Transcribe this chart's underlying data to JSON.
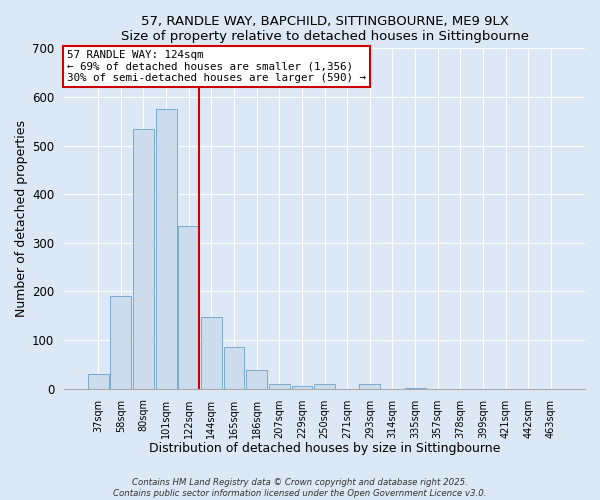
{
  "title": "57, RANDLE WAY, BAPCHILD, SITTINGBOURNE, ME9 9LX",
  "subtitle": "Size of property relative to detached houses in Sittingbourne",
  "xlabel": "Distribution of detached houses by size in Sittingbourne",
  "ylabel": "Number of detached properties",
  "bar_labels": [
    "37sqm",
    "58sqm",
    "80sqm",
    "101sqm",
    "122sqm",
    "144sqm",
    "165sqm",
    "186sqm",
    "207sqm",
    "229sqm",
    "250sqm",
    "271sqm",
    "293sqm",
    "314sqm",
    "335sqm",
    "357sqm",
    "378sqm",
    "399sqm",
    "421sqm",
    "442sqm",
    "463sqm"
  ],
  "bar_values": [
    30,
    190,
    535,
    575,
    335,
    148,
    85,
    38,
    10,
    5,
    10,
    0,
    10,
    0,
    1,
    0,
    0,
    0,
    0,
    0,
    0
  ],
  "bar_color": "#cddcec",
  "bar_edge_color": "#7aaad0",
  "vline_color": "#cc0000",
  "vline_index": 4,
  "annotation_title": "57 RANDLE WAY: 124sqm",
  "annotation_line1": "← 69% of detached houses are smaller (1,356)",
  "annotation_line2": "30% of semi-detached houses are larger (590) →",
  "annotation_box_facecolor": "#ffffff",
  "annotation_box_edgecolor": "#cc0000",
  "ylim": [
    0,
    700
  ],
  "yticks": [
    0,
    100,
    200,
    300,
    400,
    500,
    600,
    700
  ],
  "background_color": "#dce8f5",
  "grid_color": "#ffffff",
  "footer1": "Contains HM Land Registry data © Crown copyright and database right 2025.",
  "footer2": "Contains public sector information licensed under the Open Government Licence v3.0."
}
